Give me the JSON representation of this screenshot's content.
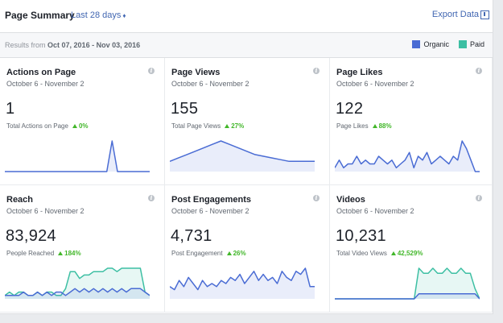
{
  "header": {
    "title": "Page Summary",
    "range_label": "Last 28 days",
    "range_caret": "♦",
    "export_label": "Export Data"
  },
  "results": {
    "prefix": "Results from",
    "range": "Oct 07, 2016 - Nov 03, 2016"
  },
  "legend": [
    {
      "label": "Organic",
      "color": "#4a6cd4"
    },
    {
      "label": "Paid",
      "color": "#3dbfa3"
    }
  ],
  "cards": [
    {
      "title": "Actions on Page",
      "date": "October 6 - November 2",
      "value": "1",
      "sub_label": "Total Actions on Page",
      "change": "0%",
      "organic": [
        0,
        0,
        0,
        0,
        0,
        0,
        0,
        0,
        0,
        0,
        0,
        0,
        0,
        0,
        0,
        0,
        0,
        0,
        0,
        0,
        1,
        0,
        0,
        0,
        0,
        0,
        0,
        0
      ],
      "paid": []
    },
    {
      "title": "Page Views",
      "date": "October 6 - November 2",
      "value": "155",
      "sub_label": "Total Page Views",
      "change": "27%",
      "organic": [
        3,
        4,
        5,
        6,
        7,
        8,
        9,
        8,
        7,
        6,
        5,
        4.5,
        4,
        3.5,
        3,
        3,
        3,
        3
      ],
      "paid": []
    },
    {
      "title": "Page Likes",
      "date": "October 6 - November 2",
      "value": "122",
      "sub_label": "Page Likes",
      "change": "88%",
      "organic": [
        1,
        3,
        1,
        2,
        2,
        4,
        2,
        3,
        2,
        2,
        4,
        3,
        2,
        3,
        1,
        2,
        3,
        5,
        1,
        4,
        3,
        5,
        2,
        3,
        4,
        3,
        2,
        4,
        3,
        8,
        6,
        3,
        0,
        0
      ],
      "paid": []
    },
    {
      "title": "Reach",
      "date": "October 6 - November 2",
      "value": "83,924",
      "sub_label": "People Reached",
      "change": "184%",
      "organic": [
        1,
        1,
        1,
        1,
        2,
        1,
        1,
        2,
        1,
        2,
        1,
        2,
        2,
        1,
        2,
        3,
        2,
        3,
        2,
        3,
        2,
        3,
        2,
        3,
        2,
        3,
        2,
        3,
        3,
        3,
        2,
        1
      ],
      "paid": [
        1,
        2,
        1,
        2,
        2,
        1,
        1,
        2,
        1,
        2,
        2,
        1,
        1,
        3,
        8,
        8,
        6,
        7,
        7,
        8,
        8,
        8,
        9,
        9,
        8,
        9,
        9,
        9,
        9,
        9,
        2,
        1
      ]
    },
    {
      "title": "Post Engagements",
      "date": "October 6 - November 2",
      "value": "4,731",
      "sub_label": "Post Engagement",
      "change": "26%",
      "organic": [
        4,
        3,
        6,
        4,
        7,
        5,
        3,
        6,
        4,
        5,
        4,
        6,
        5,
        7,
        6,
        8,
        5,
        7,
        9,
        6,
        8,
        6,
        7,
        5,
        9,
        7,
        6,
        9,
        8,
        10,
        4,
        4
      ],
      "paid": []
    },
    {
      "title": "Videos",
      "date": "October 6 - November 2",
      "value": "10,231",
      "sub_label": "Total Video Views",
      "change": "42,529%",
      "organic": [
        0,
        0,
        0,
        0,
        0,
        0,
        0,
        0,
        0,
        0,
        0,
        0,
        0,
        0,
        0,
        0,
        0,
        0,
        1,
        1,
        1,
        1,
        1,
        1,
        1,
        1,
        1,
        1,
        1,
        1,
        1,
        0
      ],
      "paid": [
        0,
        0,
        0,
        0,
        0,
        0,
        0,
        0,
        0,
        0,
        0,
        0,
        0,
        0,
        0,
        0,
        0,
        0,
        6,
        5,
        5,
        6,
        5,
        5,
        6,
        5,
        5,
        6,
        5,
        5,
        2,
        0
      ]
    }
  ]
}
